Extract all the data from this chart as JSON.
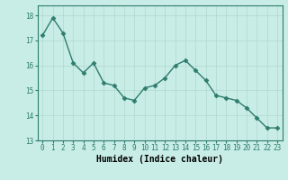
{
  "x": [
    0,
    1,
    2,
    3,
    4,
    5,
    6,
    7,
    8,
    9,
    10,
    11,
    12,
    13,
    14,
    15,
    16,
    17,
    18,
    19,
    20,
    21,
    22,
    23
  ],
  "y": [
    17.2,
    17.9,
    17.3,
    16.1,
    15.7,
    16.1,
    15.3,
    15.2,
    14.7,
    14.6,
    15.1,
    15.2,
    15.5,
    16.0,
    16.2,
    15.8,
    15.4,
    14.8,
    14.7,
    14.6,
    14.3,
    13.9,
    13.5,
    13.5
  ],
  "line_color": "#2e7d6e",
  "marker": "D",
  "marker_size": 2.5,
  "line_width": 1.0,
  "xlabel": "Humidex (Indice chaleur)",
  "xlabel_fontsize": 7,
  "xlabel_fontweight": "bold",
  "ylim": [
    13,
    18.4
  ],
  "xlim": [
    -0.5,
    23.5
  ],
  "yticks": [
    13,
    14,
    15,
    16,
    17,
    18
  ],
  "xtick_labels": [
    "0",
    "1",
    "2",
    "3",
    "4",
    "5",
    "6",
    "7",
    "8",
    "9",
    "10",
    "11",
    "12",
    "13",
    "14",
    "15",
    "16",
    "17",
    "18",
    "19",
    "20",
    "21",
    "22",
    "23"
  ],
  "background_color": "#c8ece6",
  "grid_color": "#b0d8d0",
  "tick_fontsize": 5.5,
  "spine_color": "#2e7d6e"
}
